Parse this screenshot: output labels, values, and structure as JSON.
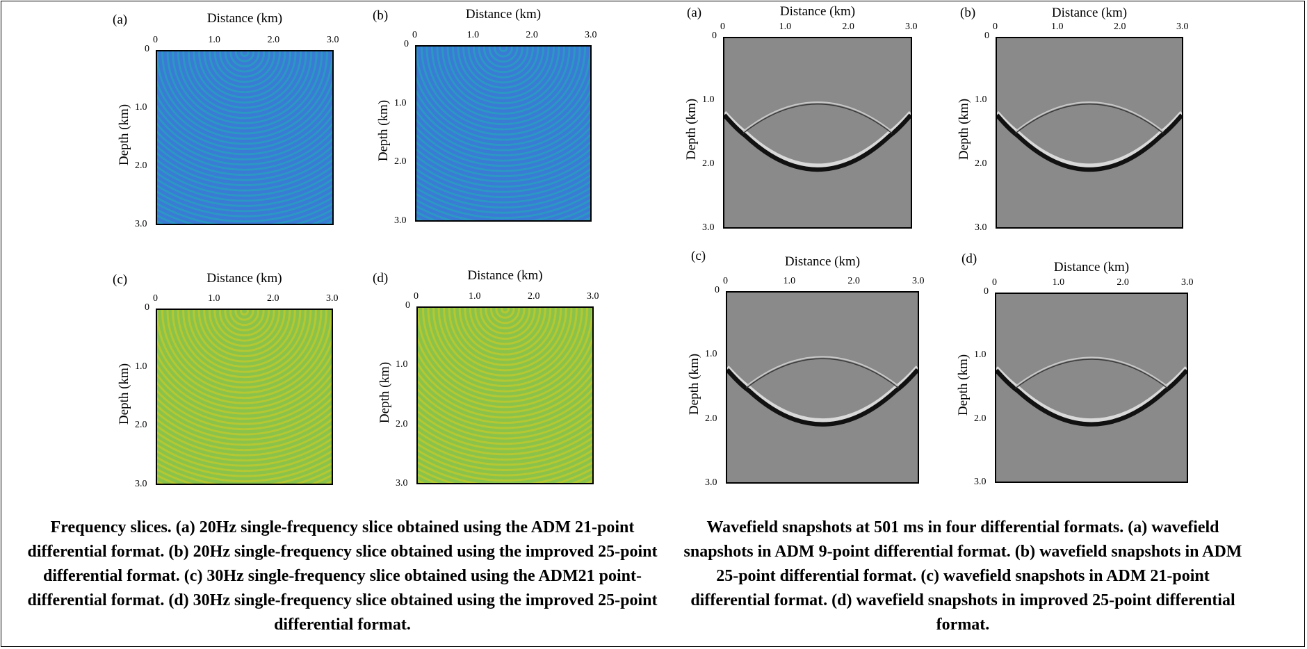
{
  "left_figure": {
    "panels": [
      {
        "letter": "(a)",
        "xlabel": "Distance (km)",
        "ylabel": "Depth (km)",
        "color": "#3a7bd5",
        "ring": "#2b98c4"
      },
      {
        "letter": "(b)",
        "xlabel": "Distance (km)",
        "ylabel": "Depth (km)",
        "color": "#3a7bd5",
        "ring": "#2b98c4"
      },
      {
        "letter": "(c)",
        "xlabel": "Distance (km)",
        "ylabel": "Depth (km)",
        "color": "#8bc34a",
        "ring": "#b5c832"
      },
      {
        "letter": "(d)",
        "xlabel": "Distance (km)",
        "ylabel": "Depth (km)",
        "color": "#8bc34a",
        "ring": "#b5c832"
      }
    ],
    "caption": "Frequency slices. (a) 20Hz single-frequency slice obtained using the ADM 21-point differential format. (b) 20Hz single-frequency slice obtained using the improved 25-point differential format. (c) 30Hz single-frequency slice obtained using the ADM21 point-differential format. (d) 30Hz single-frequency slice obtained using the improved 25-point differential format."
  },
  "right_figure": {
    "panels": [
      {
        "letter": "(a)",
        "xlabel": "Distance (km)",
        "ylabel": "Depth (km)"
      },
      {
        "letter": "(b)",
        "xlabel": "Distance (km)",
        "ylabel": "Depth (km)"
      },
      {
        "letter": "(c)",
        "xlabel": "Distance (km)",
        "ylabel": "Depth (km)"
      },
      {
        "letter": "(d)",
        "xlabel": "Distance (km)",
        "ylabel": "Depth (km)"
      }
    ],
    "caption": "Wavefield snapshots at 501 ms in four differential formats. (a) wavefield snapshots in ADM 9-point differential format. (b) wavefield snapshots in ADM 25-point differential format. (c) wavefield snapshots in ADM 21-point differential format. (d) wavefield snapshots in improved 25-point differential format."
  },
  "axes": {
    "x_ticks": [
      "0",
      "1.0",
      "2.0",
      "3.0"
    ],
    "y_ticks": [
      "0",
      "1.0",
      "2.0",
      "3.0"
    ]
  }
}
